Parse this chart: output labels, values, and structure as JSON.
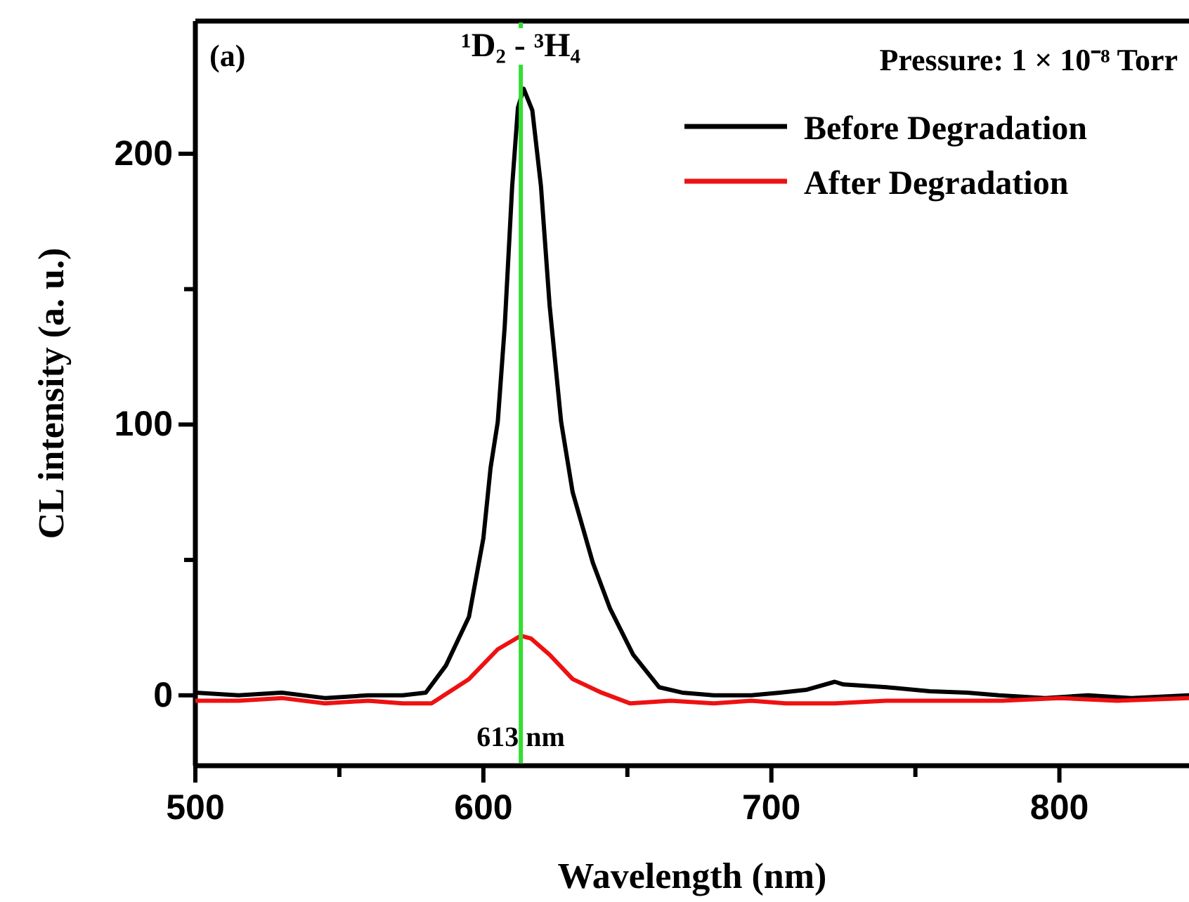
{
  "chart_data": {
    "type": "line",
    "xlabel": "Wavelength (nm)",
    "ylabel": "CL intensity (a. u.)",
    "xlim": [
      500,
      845
    ],
    "xticks": [
      500,
      {
        "value": 550,
        "label": null
      },
      600,
      {
        "value": 650,
        "label": null
      },
      700,
      {
        "value": 750,
        "label": null
      },
      800
    ],
    "ylim": [
      -26,
      249
    ],
    "yticks": [
      0,
      {
        "value": 50,
        "label": null
      },
      100,
      {
        "value": 150,
        "label": null
      },
      200
    ],
    "grid": false,
    "legend": "top right",
    "legend_title": "Pressure: 1 × 10⁻⁸ Torr",
    "line_style": "solid",
    "marker": "none",
    "ref_lines": [
      {
        "axis": "x",
        "value": 613,
        "label": "613 nm",
        "color": "#33dd33"
      }
    ],
    "annotations": [
      "(a)",
      {
        "text": "¹D₂ - ³H₄",
        "x": 613,
        "y": 236
      }
    ],
    "series": [
      {
        "name": "Before Degradation",
        "color": "#000000",
        "x": [
          500,
          515,
          530,
          545,
          560,
          572,
          580,
          587,
          595,
          600,
          602.5,
          605,
          607.4,
          610,
          612,
          614,
          617,
          620,
          623,
          627,
          631,
          638,
          644,
          652,
          661,
          669,
          680,
          693,
          703,
          712,
          722,
          725,
          740,
          755,
          768,
          779,
          795,
          810,
          825,
          845
        ],
        "values": [
          1,
          0,
          1,
          -1,
          0,
          0,
          1,
          11,
          29,
          58,
          84,
          101,
          136,
          188,
          217,
          224,
          216,
          188,
          144,
          101,
          75,
          49,
          32,
          15,
          3,
          1,
          0,
          0,
          1,
          2,
          5,
          4,
          3,
          1.5,
          1,
          0,
          -1,
          0,
          -1,
          0
        ]
      },
      {
        "name": "After Degradation",
        "color": "#ee1111",
        "x": [
          500,
          515,
          530,
          545,
          560,
          572,
          582,
          595,
          605,
          613,
          616.5,
          623,
          631,
          641,
          651,
          665,
          680,
          693,
          705,
          722,
          740,
          760,
          780,
          800,
          820,
          845
        ],
        "values": [
          -2,
          -2,
          -1,
          -3,
          -2,
          -3,
          -3,
          6,
          17,
          22,
          21,
          15,
          6,
          1,
          -3,
          -2,
          -3,
          -2,
          -3,
          -3,
          -2,
          -2,
          -2,
          -1,
          -2,
          -1
        ]
      }
    ]
  }
}
